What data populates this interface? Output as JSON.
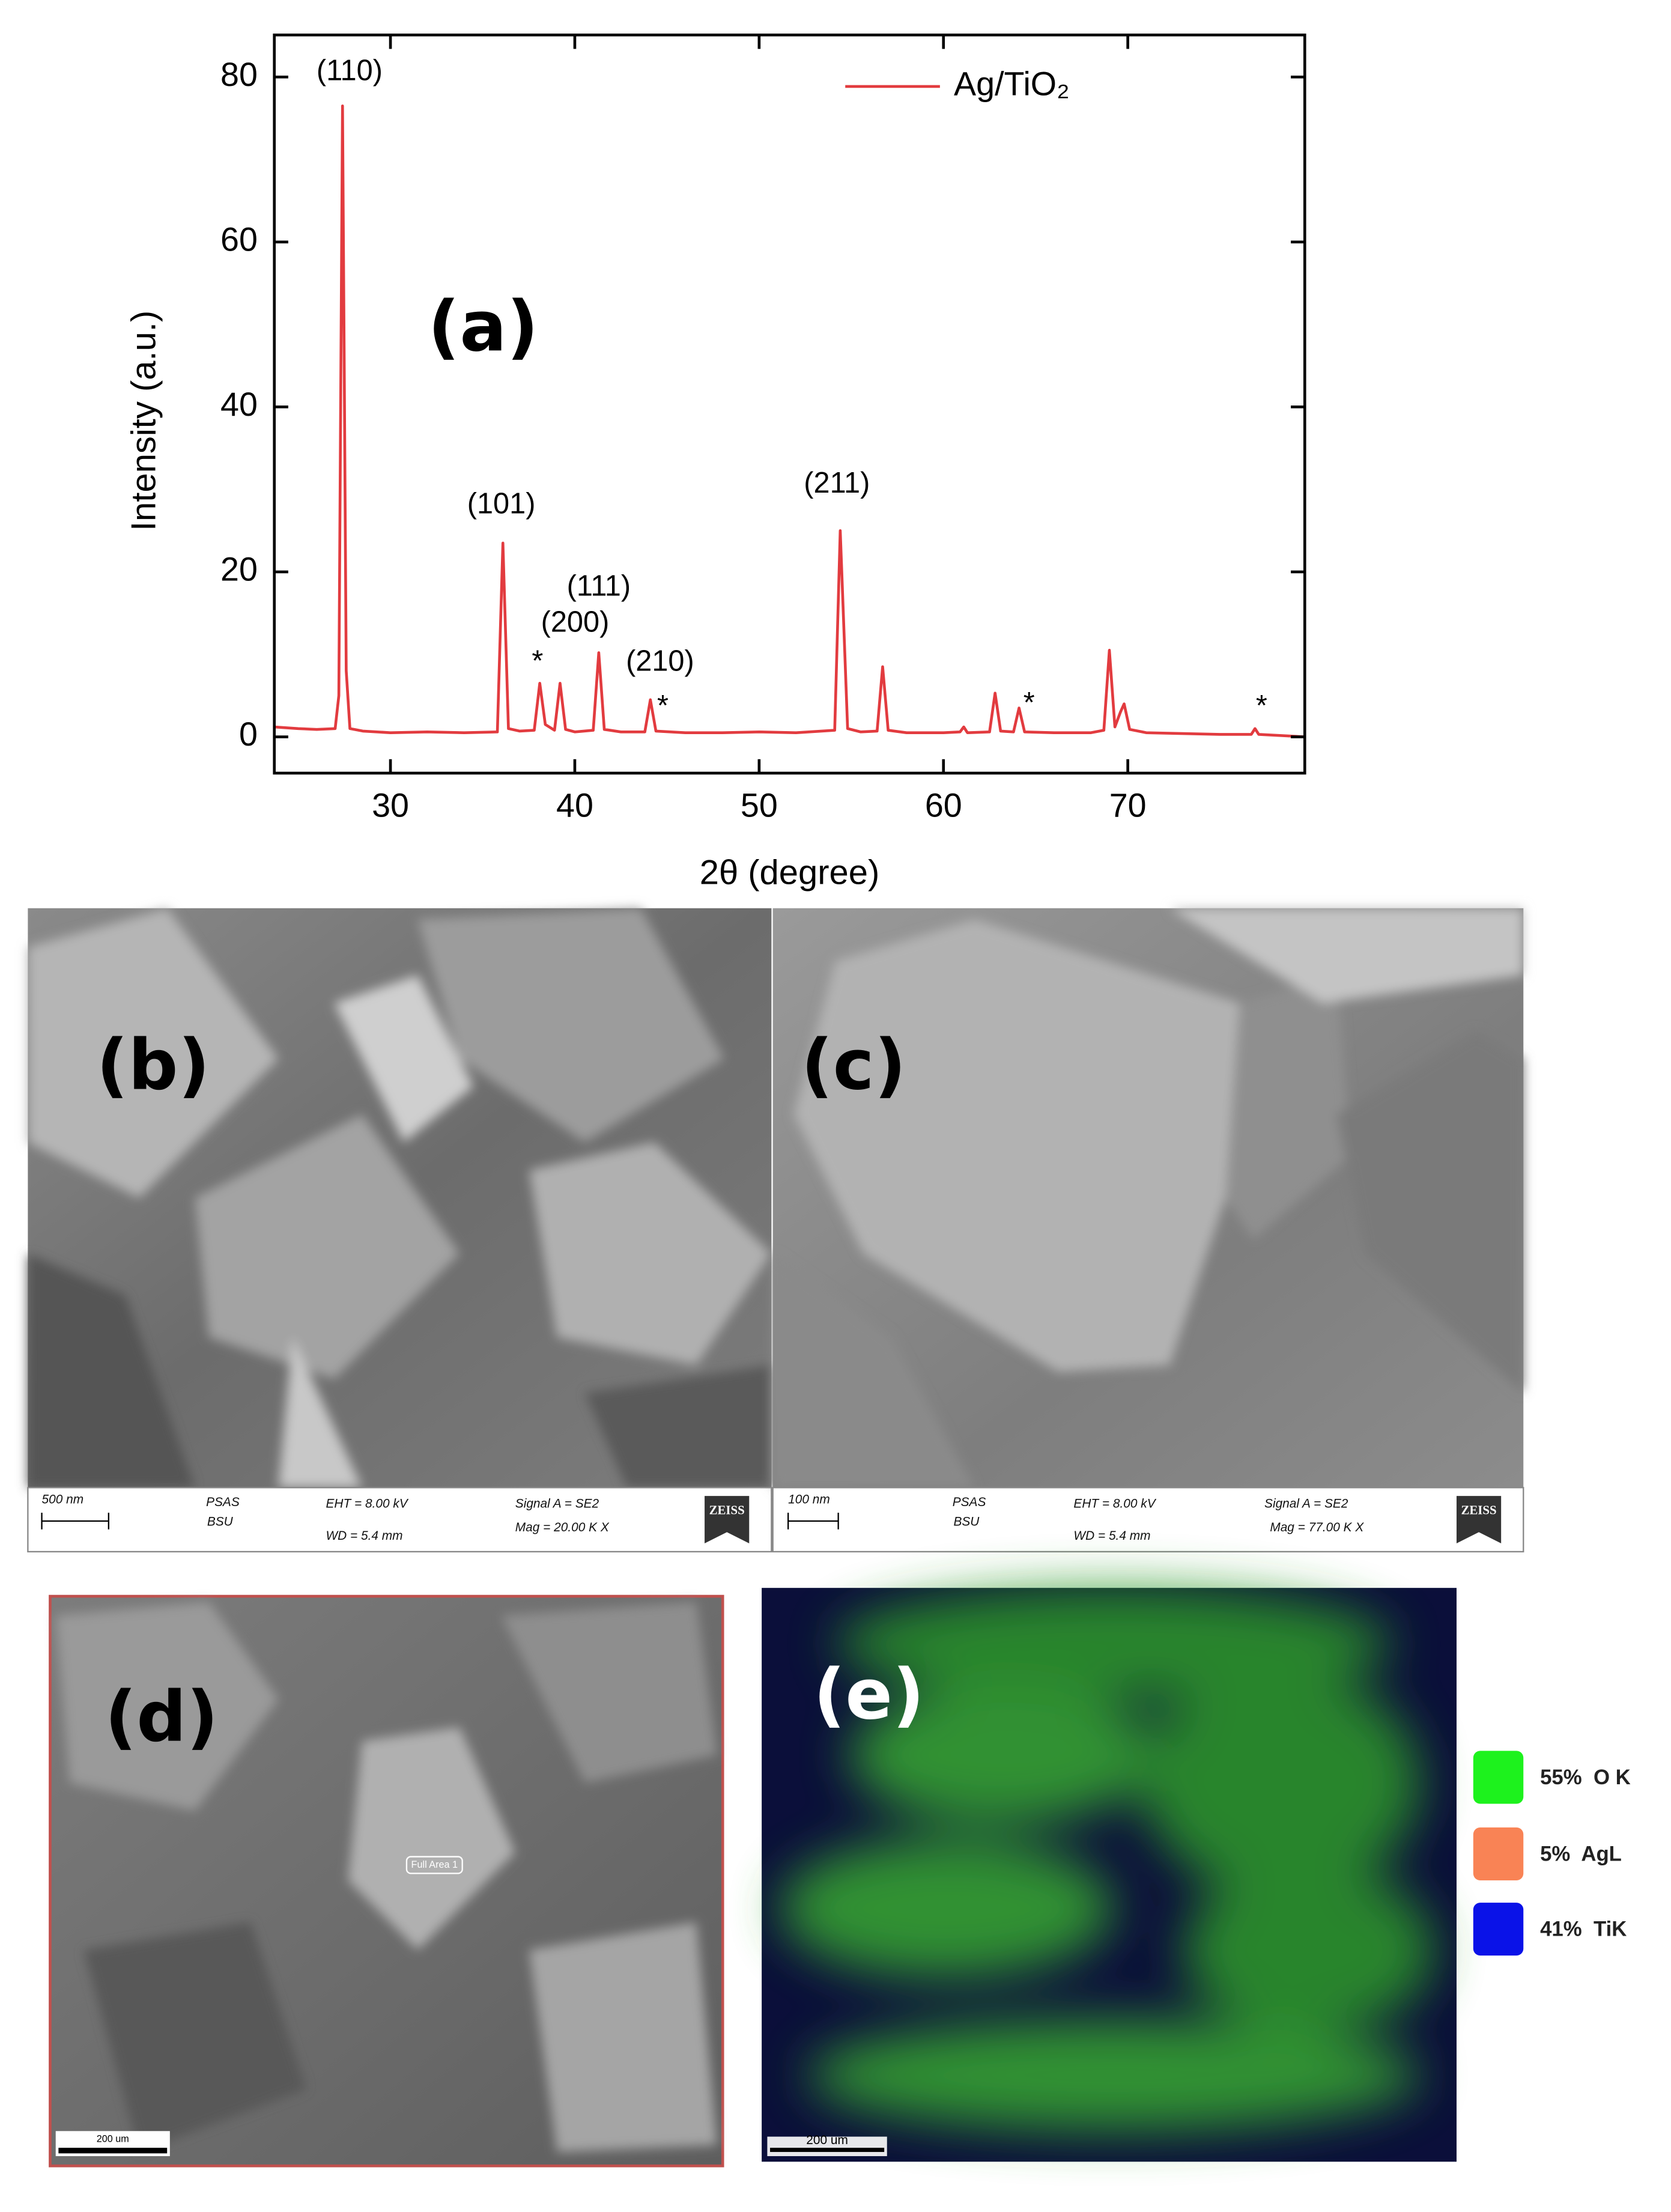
{
  "chart_data": {
    "type": "line",
    "x_label": "2θ (degree)",
    "y_label": "Intensity (a.u.)",
    "panel_label": "(a)",
    "xlim": [
      23.7,
      79.6
    ],
    "ylim": [
      -4.4,
      85.1
    ],
    "xticks": [
      30,
      40,
      50,
      60,
      70
    ],
    "yticks": [
      0,
      20,
      40,
      60,
      80
    ],
    "legend": "upper right",
    "annotations": [
      "(110)",
      "(101)",
      "*",
      "(200)",
      "(111)",
      "(210)",
      "*",
      "(211)",
      "*",
      "*"
    ],
    "x": [
      23.7,
      25,
      26,
      27,
      27.2,
      27.4,
      27.6,
      27.8,
      28.5,
      30,
      32,
      34,
      35.8,
      36.1,
      36.4,
      37,
      37.8,
      38.1,
      38.4,
      38.9,
      39.2,
      39.5,
      40,
      41.0,
      41.3,
      41.6,
      42.5,
      43.8,
      44.1,
      44.4,
      46,
      48,
      50,
      52,
      54.1,
      54.4,
      54.6,
      54.8,
      55.5,
      56.4,
      56.7,
      57.0,
      58,
      60,
      60.9,
      61.1,
      61.3,
      62.5,
      62.8,
      63.1,
      63.8,
      64.1,
      64.4,
      66,
      68,
      68.7,
      69.0,
      69.3,
      69.6,
      69.8,
      70.1,
      71,
      73,
      75,
      76.7,
      76.9,
      77.1,
      79.6
    ],
    "series": [
      {
        "name": "Ag/TiO₂",
        "color": "#e23b3f",
        "values": [
          1.2,
          1.0,
          0.9,
          1.0,
          5,
          76.5,
          8,
          1.0,
          0.7,
          0.5,
          0.6,
          0.5,
          0.6,
          23.5,
          1.0,
          0.7,
          0.8,
          6.5,
          1.5,
          0.8,
          6.5,
          0.9,
          0.6,
          0.8,
          10.2,
          0.9,
          0.6,
          0.6,
          4.5,
          0.7,
          0.5,
          0.5,
          0.6,
          0.5,
          0.8,
          25,
          13,
          1.0,
          0.6,
          0.7,
          8.5,
          0.8,
          0.5,
          0.5,
          0.6,
          1.2,
          0.5,
          0.6,
          5.3,
          0.7,
          0.6,
          3.5,
          0.6,
          0.5,
          0.5,
          0.8,
          10.5,
          1.2,
          3,
          4,
          0.9,
          0.5,
          0.4,
          0.3,
          0.3,
          1.0,
          0.3,
          0.0
        ]
      }
    ]
  },
  "panels": {
    "b": {
      "label": "(b)",
      "scale": "500 nm",
      "info": [
        "PSAS",
        "BSU",
        "EHT = 8.00 kV",
        "WD = 5.4 mm",
        "Signal A = SE2",
        "Mag = 20.00 K X"
      ],
      "logo": "ZEISS"
    },
    "c": {
      "label": "(c)",
      "scale": "100 nm",
      "info": [
        "PSAS",
        "BSU",
        "EHT = 8.00 kV",
        "WD = 5.4 mm",
        "Signal A = SE2",
        "Mag = 77.00 K X"
      ],
      "logo": "ZEISS"
    },
    "d": {
      "label": "(d)",
      "area": "Full Area 1",
      "scale": "200 um"
    },
    "e": {
      "label": "(e)",
      "scale": "200 um",
      "legend": [
        "55%  O K",
        "5%  AgL",
        "41%  TiK"
      ]
    }
  }
}
